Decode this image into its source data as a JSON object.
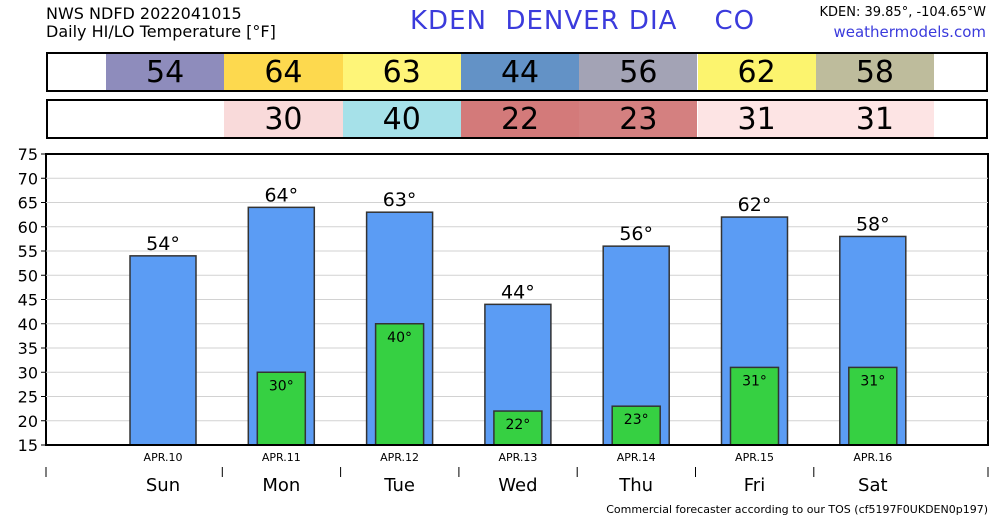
{
  "header": {
    "line1": "NWS NDFD 2022041015",
    "line2": "Daily HI/LO Temperature [°F]",
    "station": "KDEN  DENVER DIA    CO",
    "coords": "KDEN: 39.85°, -104.65°W",
    "site": "weathermodels.com"
  },
  "footer": "Commercial forecaster according to our TOS (cf5197F0UKDEN0p197)",
  "hi_strip": [
    {
      "value": "54",
      "color": "#8e8cbc"
    },
    {
      "value": "64",
      "color": "#fdd94e"
    },
    {
      "value": "63",
      "color": "#fef578"
    },
    {
      "value": "44",
      "color": "#6392c6"
    },
    {
      "value": "56",
      "color": "#a3a3b5"
    },
    {
      "value": "62",
      "color": "#fcf46e"
    },
    {
      "value": "58",
      "color": "#bebc9c"
    }
  ],
  "lo_strip": [
    {
      "value": "",
      "color": "#ffffff"
    },
    {
      "value": "30",
      "color": "#f9dada"
    },
    {
      "value": "40",
      "color": "#a6e1e9"
    },
    {
      "value": "22",
      "color": "#d37a7a"
    },
    {
      "value": "23",
      "color": "#d48080"
    },
    {
      "value": "31",
      "color": "#fde4e4"
    },
    {
      "value": "31",
      "color": "#fde4e4"
    }
  ],
  "chart_data": {
    "type": "bar",
    "categories": [
      "APR.10",
      "APR.11",
      "APR.12",
      "APR.13",
      "APR.14",
      "APR.15",
      "APR.16"
    ],
    "days": [
      "Sun",
      "Mon",
      "Tue",
      "Wed",
      "Thu",
      "Fri",
      "Sat"
    ],
    "series": [
      {
        "values": [
          54,
          64,
          63,
          44,
          56,
          62,
          58
        ],
        "color": "#5b9cf4"
      },
      {
        "values": [
          null,
          30,
          40,
          22,
          23,
          31,
          31
        ],
        "color": "#36d042"
      }
    ],
    "hi_labels": [
      "54°",
      "64°",
      "63°",
      "44°",
      "56°",
      "62°",
      "58°"
    ],
    "lo_labels": [
      "",
      "30°",
      "40°",
      "22°",
      "23°",
      "31°",
      "31°"
    ],
    "ylim": [
      15,
      75
    ],
    "yticks": [
      "15",
      "20",
      "25",
      "30",
      "35",
      "40",
      "45",
      "50",
      "55",
      "60",
      "65",
      "70",
      "75"
    ],
    "grid": true
  }
}
